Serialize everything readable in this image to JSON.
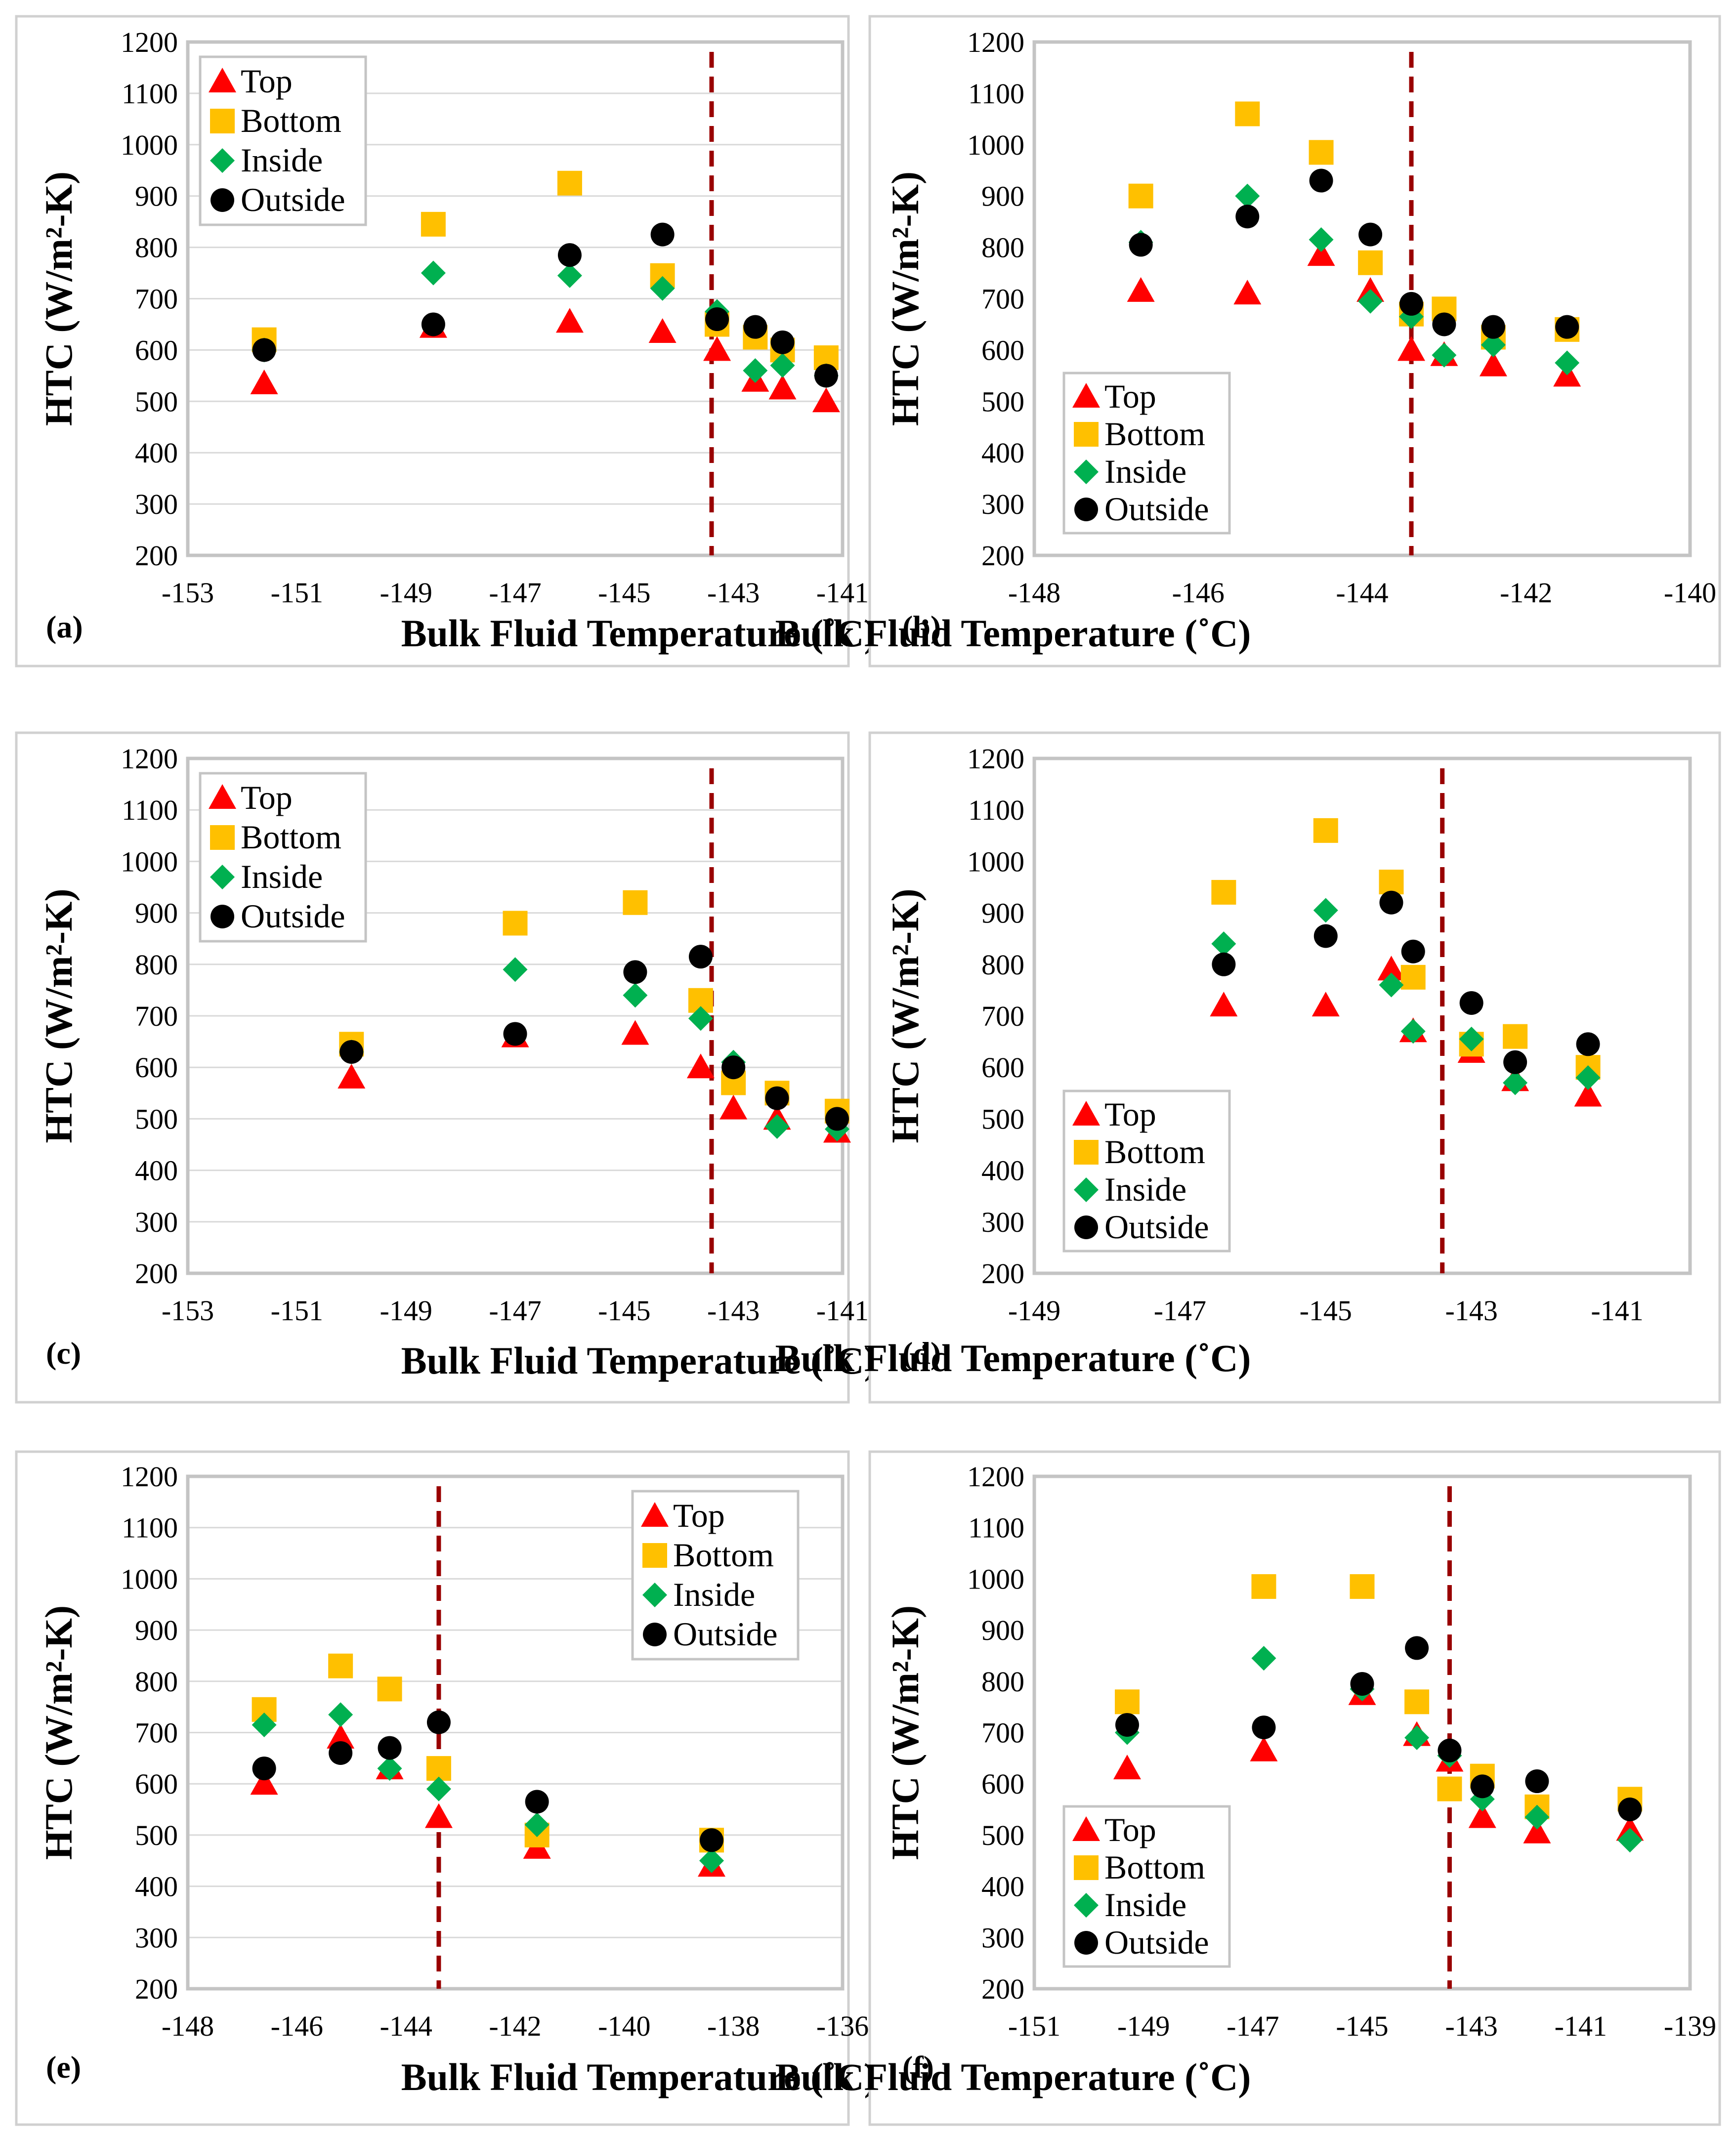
{
  "colors": {
    "Top": "#ff0000",
    "Bottom": "#ffc000",
    "Inside": "#00b050",
    "Outside": "#000000",
    "threshold": "#990000"
  },
  "chart_data": [
    {
      "type": "scatter",
      "panel": "(a)",
      "xlabel": "Bulk Fluid Temperature (˚C)",
      "ylabel": "HTC (W/m²-K)",
      "xlim": [
        -153,
        -141
      ],
      "ylim": [
        200,
        1200
      ],
      "x_ticks": [
        "-153",
        "-151",
        "-149",
        "-147",
        "-145",
        "-143",
        "-141"
      ],
      "y_ticks": [
        "200",
        "300",
        "400",
        "500",
        "600",
        "700",
        "800",
        "900",
        "1000",
        "1100",
        "1200"
      ],
      "threshold_x": -143.4,
      "legend_position": "top-left",
      "legend_rows": "4",
      "grid": "horizontal",
      "series": [
        {
          "name": "Top",
          "marker": "triangle",
          "x": [
            -151.6,
            -148.5,
            -146.0,
            -144.3,
            -143.3,
            -142.6,
            -142.1,
            -141.3
          ],
          "y": [
            535,
            645,
            655,
            635,
            600,
            540,
            525,
            500
          ]
        },
        {
          "name": "Bottom",
          "marker": "square",
          "x": [
            -151.6,
            -144.3,
            -146.0,
            -148.5,
            -143.3,
            -142.6,
            -142.1,
            -141.3
          ],
          "y": [
            620,
            745,
            925,
            845,
            650,
            625,
            600,
            585
          ]
        },
        {
          "name": "Inside",
          "marker": "diamond",
          "x": [
            -151.6,
            -148.5,
            -146.0,
            -144.3,
            -143.3,
            -142.6,
            -142.1,
            -141.3
          ],
          "y": [
            600,
            750,
            745,
            720,
            675,
            560,
            570,
            550
          ]
        },
        {
          "name": "Outside",
          "marker": "circle",
          "x": [
            -151.6,
            -148.5,
            -146.0,
            -144.3,
            -143.3,
            -142.6,
            -142.1,
            -141.3
          ],
          "y": [
            600,
            650,
            785,
            825,
            660,
            645,
            615,
            550
          ]
        }
      ]
    },
    {
      "type": "scatter",
      "panel": "(b)",
      "xlabel": "Bulk Fluid Temperature (˚C)",
      "ylabel": "HTC (W/m²-K)",
      "xlim": [
        -148,
        -140
      ],
      "ylim": [
        200,
        1200
      ],
      "x_ticks": [
        "-148",
        "-146",
        "-144",
        "-142",
        "-140"
      ],
      "y_ticks": [
        "200",
        "300",
        "400",
        "500",
        "600",
        "700",
        "800",
        "900",
        "1000",
        "1100",
        "1200"
      ],
      "threshold_x": -143.4,
      "legend_position": "bottom-left",
      "legend_rows": "4",
      "grid": "none",
      "series": [
        {
          "name": "Top",
          "marker": "triangle",
          "x": [
            -146.7,
            -145.4,
            -144.5,
            -143.9,
            -143.4,
            -143.0,
            -142.4,
            -141.5
          ],
          "y": [
            715,
            710,
            785,
            715,
            600,
            590,
            570,
            550
          ]
        },
        {
          "name": "Bottom",
          "marker": "square",
          "x": [
            -146.7,
            -145.4,
            -144.5,
            -143.9,
            -143.4,
            -143.0,
            -142.4,
            -141.5
          ],
          "y": [
            900,
            1060,
            985,
            770,
            670,
            680,
            625,
            640
          ]
        },
        {
          "name": "Inside",
          "marker": "diamond",
          "x": [
            -146.7,
            -145.4,
            -144.5,
            -143.9,
            -143.4,
            -143.0,
            -142.4,
            -141.5
          ],
          "y": [
            810,
            900,
            815,
            695,
            665,
            590,
            610,
            575
          ]
        },
        {
          "name": "Outside",
          "marker": "circle",
          "x": [
            -146.7,
            -145.4,
            -144.5,
            -143.9,
            -143.4,
            -143.0,
            -142.4,
            -141.5
          ],
          "y": [
            805,
            860,
            930,
            825,
            690,
            650,
            645,
            645
          ]
        }
      ]
    },
    {
      "type": "scatter",
      "panel": "(c)",
      "xlabel": "Bulk Fluid Temperature (˚C)",
      "ylabel": "HTC (W/m²-K)",
      "xlim": [
        -153,
        -141
      ],
      "ylim": [
        200,
        1200
      ],
      "x_ticks": [
        "-153",
        "-151",
        "-149",
        "-147",
        "-145",
        "-143",
        "-141"
      ],
      "y_ticks": [
        "200",
        "300",
        "400",
        "500",
        "600",
        "700",
        "800",
        "900",
        "1000",
        "1100",
        "1200"
      ],
      "threshold_x": -143.4,
      "legend_position": "top-left",
      "legend_rows": "4",
      "grid": "horizontal",
      "series": [
        {
          "name": "Top",
          "marker": "triangle",
          "x": [
            -150.0,
            -147.0,
            -144.8,
            -143.6,
            -143.0,
            -142.2,
            -141.1
          ],
          "y": [
            580,
            660,
            665,
            600,
            520,
            500,
            475
          ]
        },
        {
          "name": "Bottom",
          "marker": "square",
          "x": [
            -150.0,
            -147.0,
            -144.8,
            -143.6,
            -143.0,
            -142.2,
            -141.1
          ],
          "y": [
            645,
            880,
            920,
            730,
            570,
            550,
            515
          ]
        },
        {
          "name": "Inside",
          "marker": "diamond",
          "x": [
            -150.0,
            -147.0,
            -144.8,
            -143.6,
            -143.0,
            -142.2,
            -141.1
          ],
          "y": [
            630,
            790,
            740,
            695,
            610,
            485,
            480
          ]
        },
        {
          "name": "Outside",
          "marker": "circle",
          "x": [
            -150.0,
            -147.0,
            -144.8,
            -143.6,
            -143.0,
            -142.2,
            -141.1
          ],
          "y": [
            630,
            665,
            785,
            815,
            600,
            540,
            500
          ]
        }
      ]
    },
    {
      "type": "scatter",
      "panel": "(d)",
      "xlabel": "Bulk Fluid Temperature (˚C)",
      "ylabel": "HTC (W/m²-K)",
      "xlim": [
        -149,
        -140
      ],
      "ylim": [
        200,
        1200
      ],
      "x_ticks": [
        "-149",
        "-147",
        "-145",
        "-143",
        "-141"
      ],
      "y_ticks": [
        "200",
        "300",
        "400",
        "500",
        "600",
        "700",
        "800",
        "900",
        "1000",
        "1100",
        "1200"
      ],
      "threshold_x": -143.4,
      "legend_position": "bottom-left",
      "legend_rows": "4",
      "grid": "none",
      "series": [
        {
          "name": "Top",
          "marker": "triangle",
          "x": [
            -146.4,
            -145.0,
            -144.1,
            -143.8,
            -143.0,
            -142.4,
            -141.4
          ],
          "y": [
            720,
            720,
            790,
            670,
            630,
            575,
            545
          ]
        },
        {
          "name": "Bottom",
          "marker": "square",
          "x": [
            -146.4,
            -145.0,
            -144.1,
            -143.8,
            -143.0,
            -142.4,
            -141.4
          ],
          "y": [
            940,
            1060,
            960,
            775,
            645,
            660,
            600
          ]
        },
        {
          "name": "Inside",
          "marker": "diamond",
          "x": [
            -146.4,
            -145.0,
            -144.1,
            -143.8,
            -143.0,
            -142.4,
            -141.4
          ],
          "y": [
            840,
            905,
            760,
            670,
            655,
            570,
            580
          ]
        },
        {
          "name": "Outside",
          "marker": "circle",
          "x": [
            -146.4,
            -145.0,
            -144.1,
            -143.8,
            -143.0,
            -142.4,
            -141.4
          ],
          "y": [
            800,
            855,
            920,
            825,
            725,
            610,
            645
          ]
        }
      ]
    },
    {
      "type": "scatter",
      "panel": "(e)",
      "xlabel": "Bulk Fluid Temperature (˚C)",
      "ylabel": "HTC (W/m²-K)",
      "xlim": [
        -148,
        -136
      ],
      "ylim": [
        200,
        1200
      ],
      "x_ticks": [
        "-148",
        "-146",
        "-144",
        "-142",
        "-140",
        "-138",
        "-136"
      ],
      "y_ticks": [
        "200",
        "300",
        "400",
        "500",
        "600",
        "700",
        "800",
        "900",
        "1000",
        "1100",
        "1200"
      ],
      "threshold_x": -143.4,
      "legend_position": "top-right",
      "legend_rows": "4",
      "grid": "horizontal",
      "series": [
        {
          "name": "Top",
          "marker": "triangle",
          "x": [
            -146.6,
            -145.2,
            -144.3,
            -143.4,
            -141.6,
            -138.4
          ],
          "y": [
            600,
            690,
            630,
            535,
            475,
            440
          ]
        },
        {
          "name": "Bottom",
          "marker": "square",
          "x": [
            -146.6,
            -145.2,
            -144.3,
            -143.4,
            -141.6,
            -138.4
          ],
          "y": [
            745,
            830,
            785,
            630,
            500,
            490
          ]
        },
        {
          "name": "Inside",
          "marker": "diamond",
          "x": [
            -146.6,
            -145.2,
            -144.3,
            -143.4,
            -141.6,
            -138.4
          ],
          "y": [
            715,
            735,
            630,
            590,
            520,
            450
          ]
        },
        {
          "name": "Outside",
          "marker": "circle",
          "x": [
            -146.6,
            -145.2,
            -144.3,
            -143.4,
            -141.6,
            -138.4
          ],
          "y": [
            630,
            660,
            670,
            720,
            565,
            490
          ]
        }
      ]
    },
    {
      "type": "scatter",
      "panel": "(f)",
      "xlabel": "Bulk Fluid Temperature (˚C)",
      "ylabel": "HTC (W/m²-K)",
      "xlim": [
        -151,
        -139
      ],
      "ylim": [
        200,
        1200
      ],
      "x_ticks": [
        "-151",
        "-149",
        "-147",
        "-145",
        "-143",
        "-141",
        "-139"
      ],
      "y_ticks": [
        "200",
        "300",
        "400",
        "500",
        "600",
        "700",
        "800",
        "900",
        "1000",
        "1100",
        "1200"
      ],
      "threshold_x": -143.4,
      "legend_position": "bottom-left",
      "legend_rows": "4",
      "grid": "none",
      "series": [
        {
          "name": "Top",
          "marker": "triangle",
          "x": [
            -149.3,
            -146.8,
            -145.0,
            -144.0,
            -143.4,
            -142.8,
            -141.8,
            -140.1
          ],
          "y": [
            630,
            665,
            775,
            695,
            645,
            535,
            505,
            510
          ]
        },
        {
          "name": "Bottom",
          "marker": "square",
          "x": [
            -149.3,
            -146.8,
            -145.0,
            -144.0,
            -143.4,
            -142.8,
            -141.8,
            -140.1
          ],
          "y": [
            760,
            985,
            985,
            760,
            590,
            615,
            555,
            570
          ]
        },
        {
          "name": "Inside",
          "marker": "diamond",
          "x": [
            -149.3,
            -146.8,
            -145.0,
            -144.0,
            -143.4,
            -142.8,
            -141.8,
            -140.1
          ],
          "y": [
            700,
            845,
            785,
            690,
            655,
            570,
            535,
            490
          ]
        },
        {
          "name": "Outside",
          "marker": "circle",
          "x": [
            -149.3,
            -146.8,
            -145.0,
            -144.0,
            -143.4,
            -142.8,
            -141.8,
            -140.1
          ],
          "y": [
            715,
            710,
            795,
            865,
            665,
            595,
            605,
            550
          ]
        }
      ]
    }
  ]
}
